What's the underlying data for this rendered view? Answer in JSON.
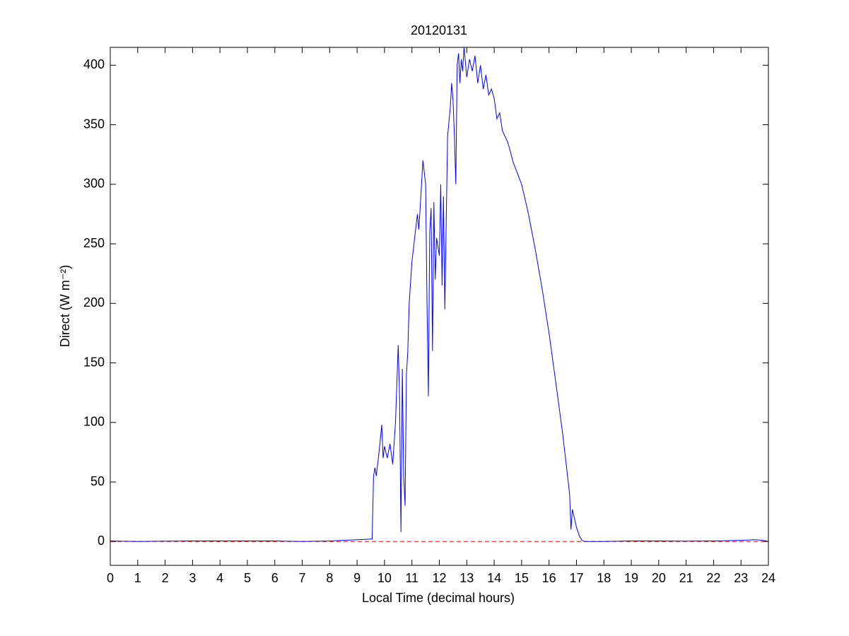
{
  "chart_data": {
    "type": "line",
    "title": "20120131",
    "xlabel": "Local Time (decimal hours)",
    "ylabel": "Direct (W m⁻²)",
    "xlim": [
      0,
      24
    ],
    "ylim": [
      -20,
      415
    ],
    "xticks": [
      0,
      1,
      2,
      3,
      4,
      5,
      6,
      7,
      8,
      9,
      10,
      11,
      12,
      13,
      14,
      15,
      16,
      17,
      18,
      19,
      20,
      21,
      22,
      23,
      24
    ],
    "yticks": [
      0,
      50,
      100,
      150,
      200,
      250,
      300,
      350,
      400
    ],
    "grid": false,
    "hline": {
      "value": 0,
      "color": "#ff0000",
      "dashed": true
    },
    "series": [
      {
        "color": "#0000ff",
        "x": [
          0,
          1,
          2,
          3,
          4,
          5,
          6,
          7,
          8,
          8.5,
          9,
          9.5,
          9.55,
          9.6,
          9.65,
          9.7,
          9.8,
          9.9,
          9.95,
          10,
          10.1,
          10.2,
          10.3,
          10.4,
          10.5,
          10.55,
          10.6,
          10.65,
          10.7,
          10.75,
          10.8,
          10.85,
          10.9,
          11,
          11.1,
          11.2,
          11.25,
          11.3,
          11.4,
          11.5,
          11.55,
          11.6,
          11.65,
          11.7,
          11.75,
          11.8,
          11.85,
          11.9,
          12,
          12.05,
          12.1,
          12.15,
          12.2,
          12.3,
          12.4,
          12.45,
          12.5,
          12.55,
          12.6,
          12.65,
          12.7,
          12.75,
          12.8,
          12.85,
          12.9,
          13,
          13.1,
          13.2,
          13.3,
          13.4,
          13.5,
          13.6,
          13.7,
          13.8,
          13.9,
          14,
          14.1,
          14.2,
          14.3,
          14.5,
          14.7,
          15,
          15.25,
          15.5,
          15.75,
          16,
          16.25,
          16.5,
          16.75,
          16.8,
          16.85,
          16.9,
          17,
          17.1,
          17.2,
          17.3,
          18,
          19,
          20,
          21,
          22,
          23,
          23.5,
          23.8,
          24
        ],
        "values": [
          0.5,
          0,
          0.3,
          0.5,
          0.5,
          0.5,
          0.5,
          0,
          0.5,
          1,
          1.5,
          2,
          2,
          55,
          62,
          55,
          75,
          98,
          70,
          80,
          70,
          82,
          65,
          100,
          165,
          120,
          8,
          145,
          55,
          30,
          140,
          160,
          200,
          235,
          255,
          275,
          262,
          280,
          320,
          300,
          200,
          122,
          260,
          280,
          160,
          285,
          220,
          255,
          240,
          300,
          215,
          290,
          195,
          340,
          365,
          385,
          370,
          340,
          300,
          400,
          410,
          385,
          405,
          395,
          415,
          390,
          405,
          395,
          408,
          385,
          400,
          380,
          392,
          375,
          380,
          372,
          355,
          360,
          345,
          335,
          318,
          300,
          275,
          245,
          212,
          175,
          133,
          90,
          40,
          10,
          27,
          22,
          12,
          5,
          1,
          0,
          0,
          0.5,
          0.5,
          0.3,
          0.5,
          1,
          1.5,
          1,
          0
        ]
      }
    ]
  }
}
